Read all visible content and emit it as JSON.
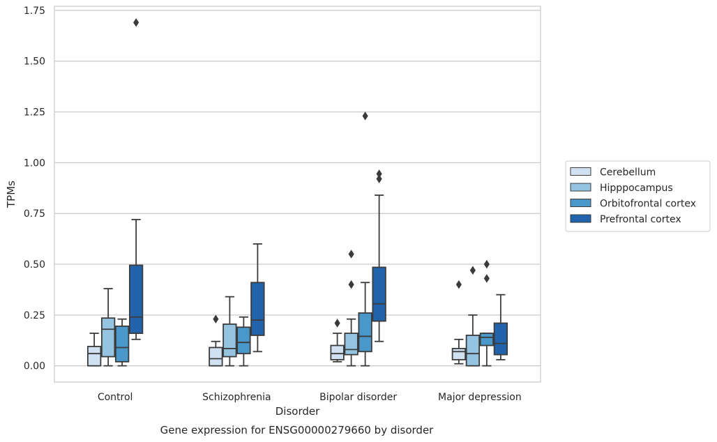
{
  "chart_data": {
    "type": "box",
    "title": "",
    "caption": "Gene expression for ENSG00000279660 by disorder",
    "xlabel": "Disorder",
    "ylabel": "TPMs",
    "ylim": [
      -0.08,
      1.77
    ],
    "yticks": [
      0.0,
      0.25,
      0.5,
      0.75,
      1.0,
      1.25,
      1.5,
      1.75
    ],
    "ytick_labels": [
      "0.00",
      "0.25",
      "0.50",
      "0.75",
      "1.00",
      "1.25",
      "1.50",
      "1.75"
    ],
    "grid": true,
    "legend_position": "right",
    "categories": [
      "Control",
      "Schizophrenia",
      "Bipolar disorder",
      "Major depression"
    ],
    "series": [
      {
        "name": "Cerebellum",
        "color": "#d0e1f2",
        "boxes": [
          {
            "whislo": 0.0,
            "q1": 0.0,
            "med": 0.06,
            "q3": 0.095,
            "whishi": 0.16,
            "fliers": []
          },
          {
            "whislo": 0.0,
            "q1": 0.0,
            "med": 0.035,
            "q3": 0.09,
            "whishi": 0.12,
            "fliers": [
              0.23
            ]
          },
          {
            "whislo": 0.02,
            "q1": 0.03,
            "med": 0.06,
            "q3": 0.1,
            "whishi": 0.16,
            "fliers": [
              0.21
            ]
          },
          {
            "whislo": 0.01,
            "q1": 0.03,
            "med": 0.07,
            "q3": 0.085,
            "whishi": 0.13,
            "fliers": [
              0.4
            ]
          }
        ]
      },
      {
        "name": "Hipppocampus",
        "color": "#94c4df",
        "boxes": [
          {
            "whislo": 0.0,
            "q1": 0.045,
            "med": 0.18,
            "q3": 0.235,
            "whishi": 0.38,
            "fliers": []
          },
          {
            "whislo": 0.0,
            "q1": 0.045,
            "med": 0.085,
            "q3": 0.205,
            "whishi": 0.34,
            "fliers": []
          },
          {
            "whislo": 0.0,
            "q1": 0.055,
            "med": 0.08,
            "q3": 0.16,
            "whishi": 0.23,
            "fliers": [
              0.4,
              0.55
            ]
          },
          {
            "whislo": 0.0,
            "q1": 0.0,
            "med": 0.06,
            "q3": 0.15,
            "whishi": 0.25,
            "fliers": [
              0.47
            ]
          }
        ]
      },
      {
        "name": "Orbitofrontal cortex",
        "color": "#4a98c9",
        "boxes": [
          {
            "whislo": 0.0,
            "q1": 0.02,
            "med": 0.09,
            "q3": 0.195,
            "whishi": 0.23,
            "fliers": []
          },
          {
            "whislo": 0.0,
            "q1": 0.06,
            "med": 0.115,
            "q3": 0.19,
            "whishi": 0.24,
            "fliers": []
          },
          {
            "whislo": 0.0,
            "q1": 0.07,
            "med": 0.145,
            "q3": 0.26,
            "whishi": 0.41,
            "fliers": [
              1.23
            ]
          },
          {
            "whislo": 0.0,
            "q1": 0.1,
            "med": 0.14,
            "q3": 0.16,
            "whishi": 0.16,
            "fliers": [
              0.43,
              0.5
            ]
          }
        ]
      },
      {
        "name": "Prefrontal cortex",
        "color": "#2164ab",
        "boxes": [
          {
            "whislo": 0.13,
            "q1": 0.16,
            "med": 0.24,
            "q3": 0.495,
            "whishi": 0.72,
            "fliers": [
              1.69
            ]
          },
          {
            "whislo": 0.07,
            "q1": 0.15,
            "med": 0.225,
            "q3": 0.41,
            "whishi": 0.6,
            "fliers": []
          },
          {
            "whislo": 0.12,
            "q1": 0.22,
            "med": 0.305,
            "q3": 0.485,
            "whishi": 0.84,
            "fliers": [
              0.92,
              0.945
            ]
          },
          {
            "whislo": 0.03,
            "q1": 0.055,
            "med": 0.11,
            "q3": 0.21,
            "whishi": 0.35,
            "fliers": []
          }
        ]
      }
    ]
  }
}
